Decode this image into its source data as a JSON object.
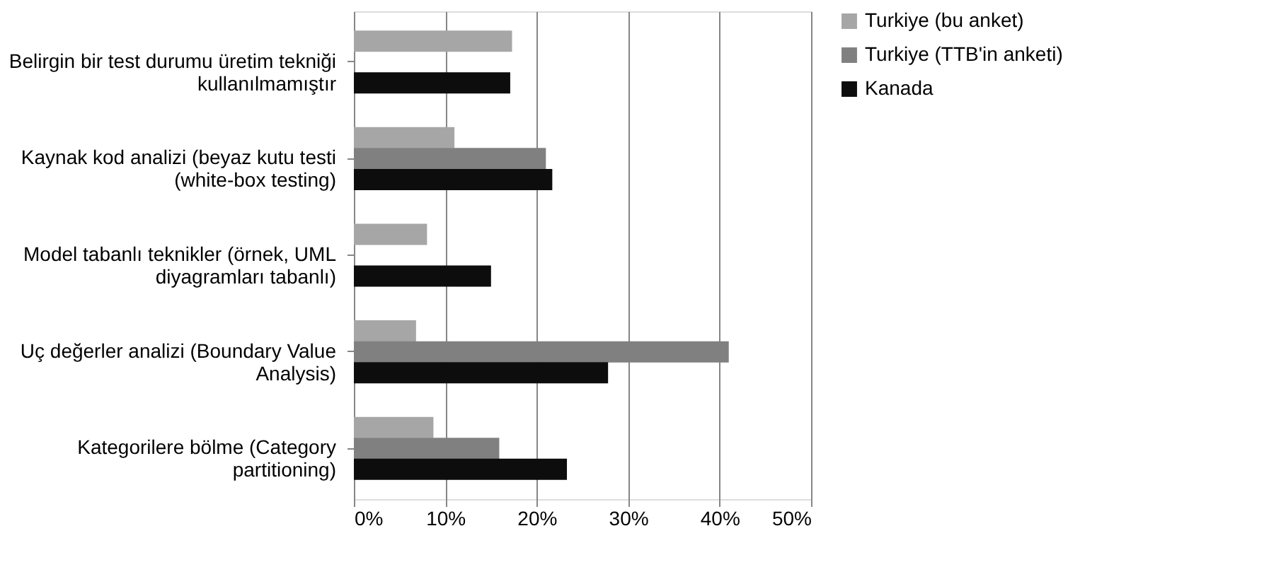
{
  "chart_data": {
    "type": "bar",
    "orientation": "horizontal",
    "categories": [
      "Belirgin bir test durumu üretim tekniği kullanılmamıştır",
      "Kaynak kod analizi (beyaz kutu testi (white-box testing)",
      "Model tabanlı teknikler (örnek, UML diyagramları tabanlı)",
      "Uç değerler analizi (Boundary Value Analysis)",
      "Kategorilere bölme (Category partitioning)"
    ],
    "series": [
      {
        "name": "Turkiye (bu anket)",
        "color": "#a6a6a6",
        "values": [
          17.3,
          11.0,
          8.0,
          6.8,
          8.7
        ]
      },
      {
        "name": "Turkiye (TTB'in anketi)",
        "color": "#808080",
        "values": [
          null,
          21.0,
          null,
          41.0,
          15.9
        ]
      },
      {
        "name": "Kanada",
        "color": "#0d0d0d",
        "values": [
          17.1,
          21.7,
          15.0,
          27.8,
          23.3
        ]
      }
    ],
    "xlim": [
      0,
      50
    ],
    "xticks": [
      {
        "value": 0,
        "label": "0%"
      },
      {
        "value": 10,
        "label": "10%"
      },
      {
        "value": 20,
        "label": "20%"
      },
      {
        "value": 30,
        "label": "30%"
      },
      {
        "value": 40,
        "label": "40%"
      },
      {
        "value": 50,
        "label": "50%"
      }
    ],
    "grid": "x",
    "legend": "right"
  }
}
